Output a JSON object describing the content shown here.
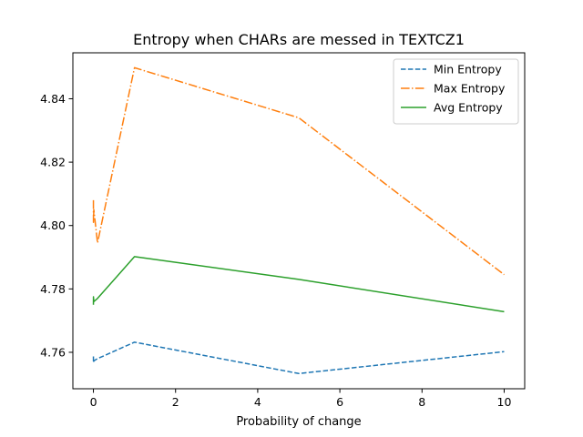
{
  "chart_data": {
    "type": "line",
    "title": "Entropy when CHARs are messed in TEXTCZ1",
    "xlabel": "Probability of change",
    "ylabel": "",
    "xlim": [
      -0.5,
      10.5
    ],
    "ylim": [
      4.7485,
      4.8545
    ],
    "xticks": [
      0,
      2,
      4,
      6,
      8,
      10
    ],
    "yticks": [
      4.76,
      4.78,
      4.8,
      4.82,
      4.84
    ],
    "ytick_labels": [
      "4.76",
      "4.78",
      "4.80",
      "4.82",
      "4.84"
    ],
    "x": [
      0,
      0.001,
      0.01,
      0.1,
      1,
      5,
      10
    ],
    "series": [
      {
        "name": "Min Entropy",
        "style": "dashed",
        "color": "#1f77b4",
        "values": [
          4.7587,
          4.7567,
          4.7573,
          4.758,
          4.7632,
          4.7533,
          4.7602
        ]
      },
      {
        "name": "Max Entropy",
        "style": "dashdot",
        "color": "#ff7f0e",
        "values": [
          4.808,
          4.801,
          4.805,
          4.7945,
          4.8498,
          4.834,
          4.7845
        ]
      },
      {
        "name": "Avg Entropy",
        "style": "solid",
        "color": "#2ca02c",
        "values": [
          4.775,
          4.7775,
          4.776,
          4.777,
          4.7902,
          4.783,
          4.7728
        ]
      }
    ],
    "grid": false,
    "legend_position": "top-right"
  }
}
